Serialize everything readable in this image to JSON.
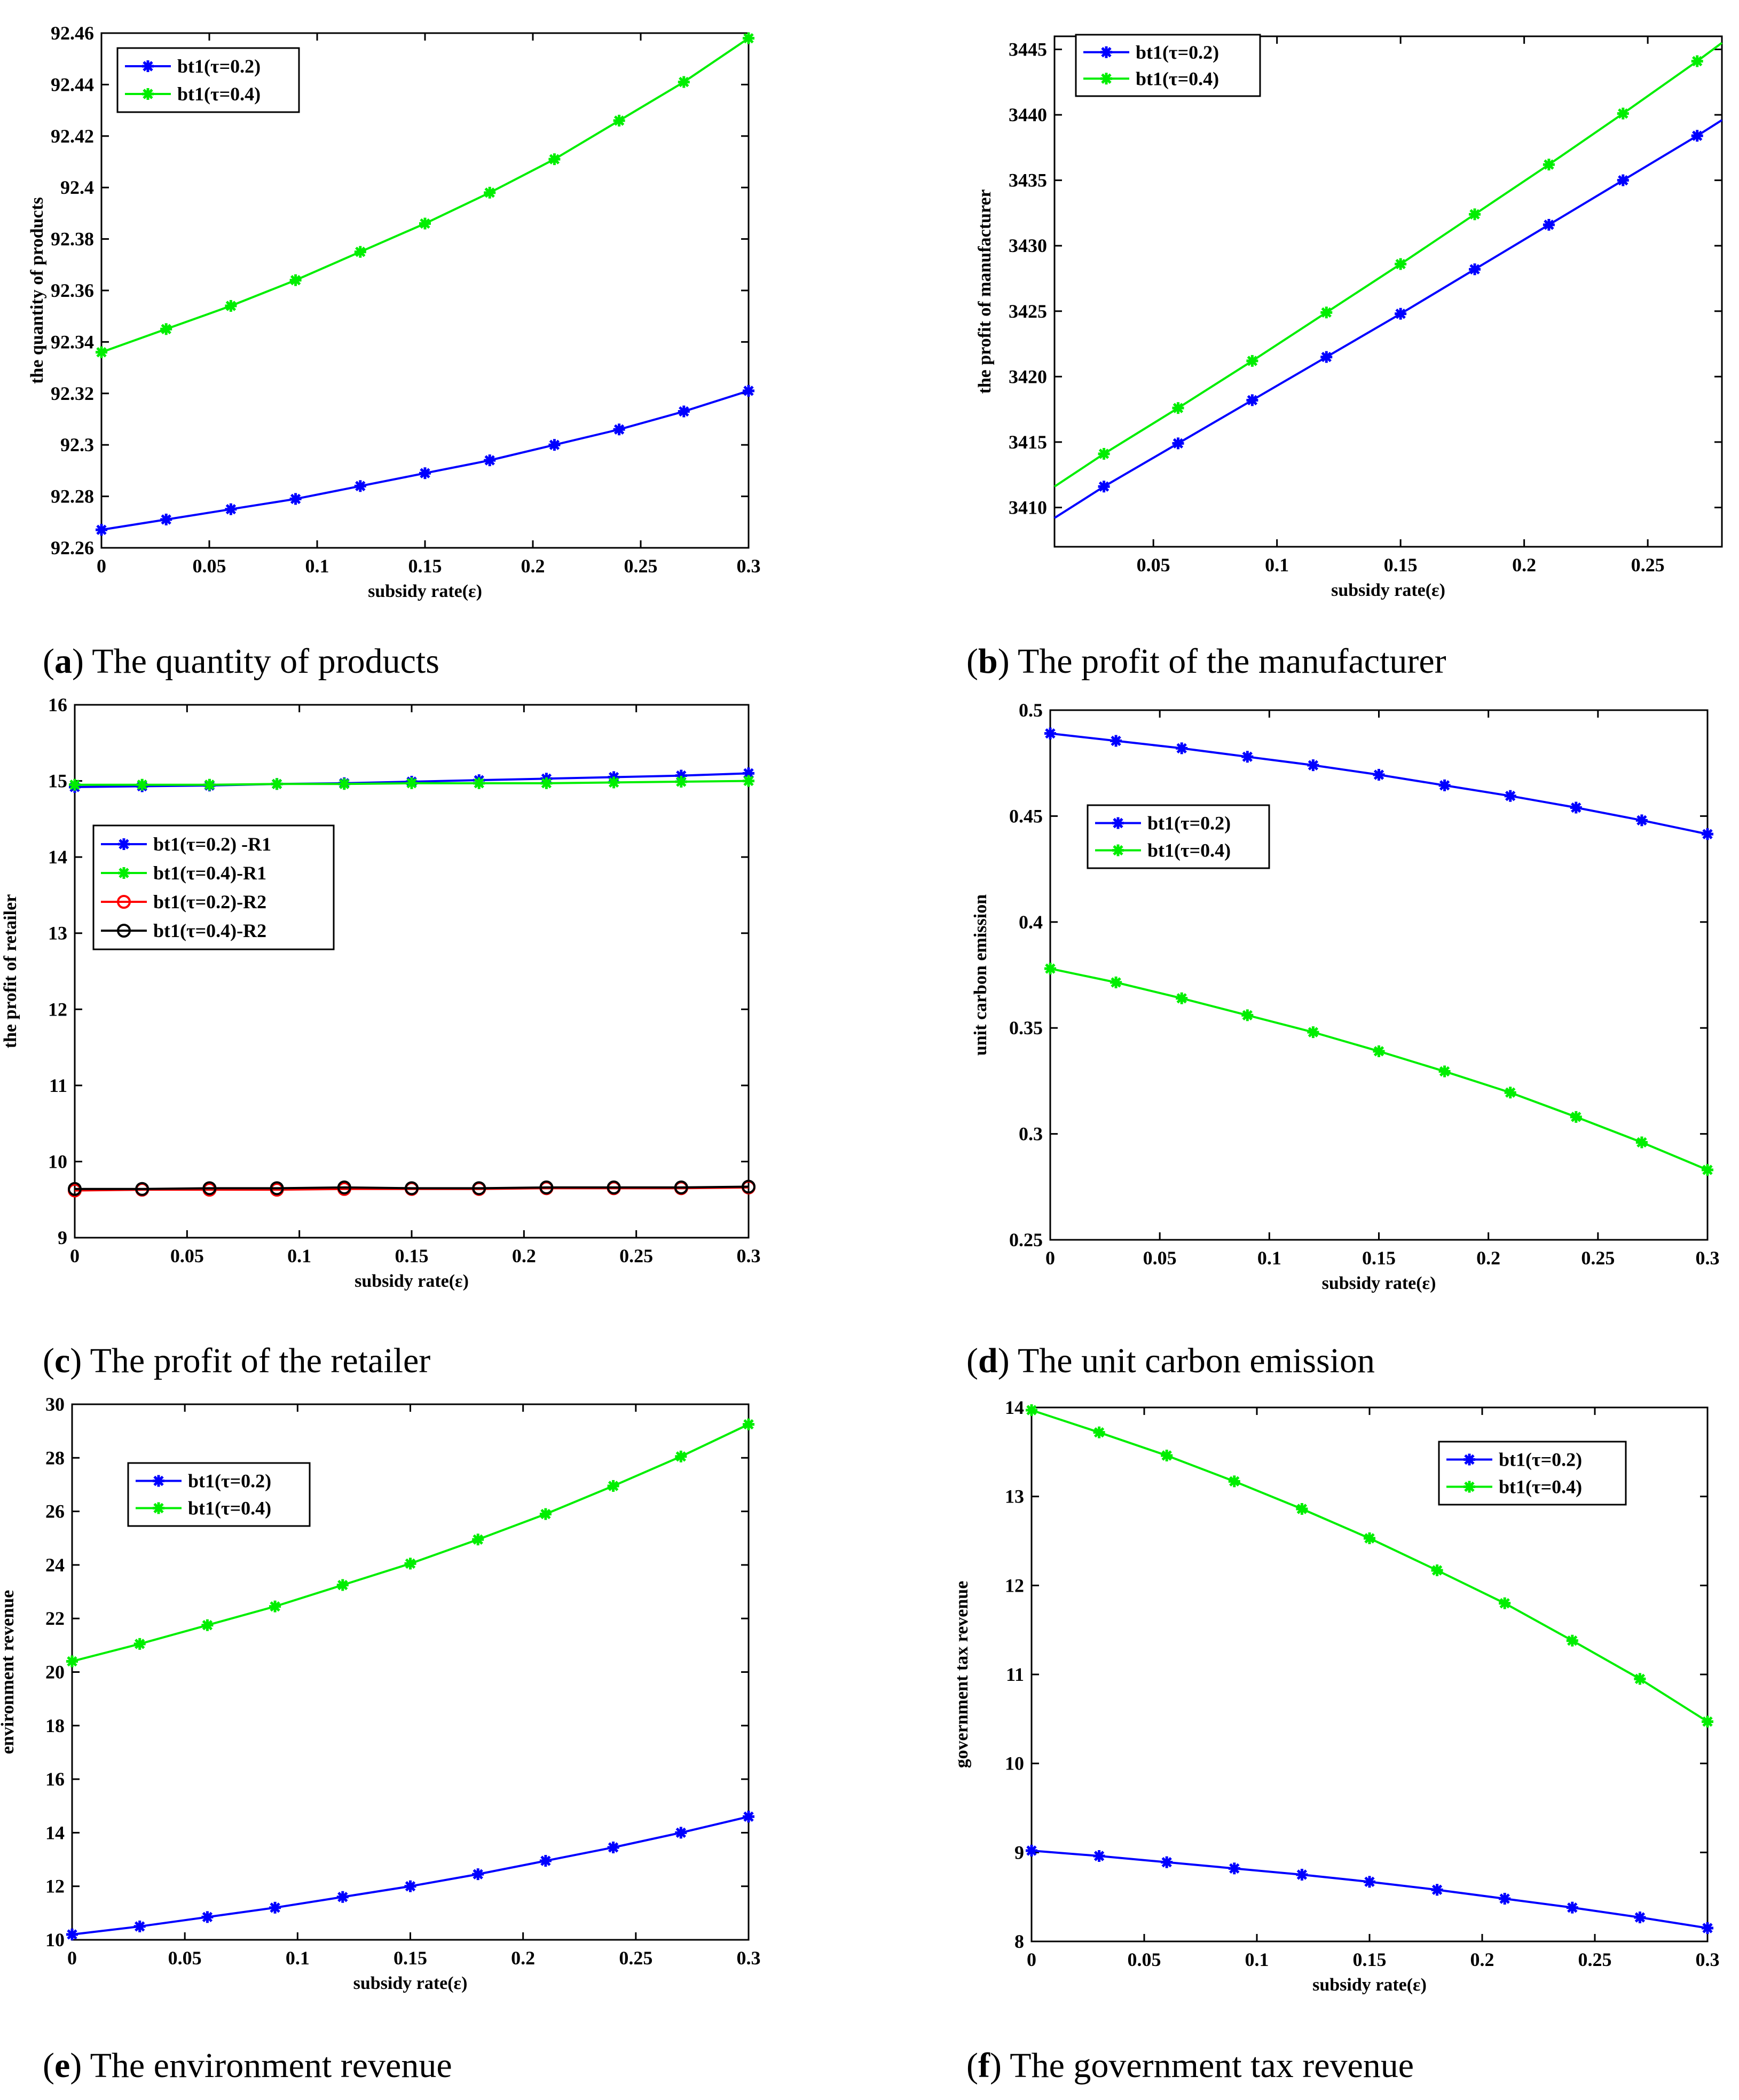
{
  "figure": {
    "panels": [
      {
        "letter": "a",
        "caption": "The quantity of products"
      },
      {
        "letter": "b",
        "caption": "The profit of the manufacturer"
      },
      {
        "letter": "c",
        "caption": "The profit of the retailer"
      },
      {
        "letter": "d",
        "caption": "The unit carbon emission"
      },
      {
        "letter": "e",
        "caption": "The environment revenue"
      },
      {
        "letter": "f",
        "caption": "The government tax revenue"
      }
    ]
  },
  "colors": {
    "blue": "#0000ff",
    "green": "#00ee00",
    "red": "#ff0000",
    "black": "#000000"
  },
  "chart_data": [
    {
      "id": "a",
      "type": "line",
      "title": "",
      "xlabel": "subsidy rate(ε)",
      "ylabel": "the quantity of products",
      "xlim": [
        0,
        0.3
      ],
      "ylim": [
        92.26,
        92.46
      ],
      "xticks": [
        0,
        0.05,
        0.1,
        0.15,
        0.2,
        0.25,
        0.3
      ],
      "xtick_labels": [
        "0",
        "0.05",
        "0.1",
        "0.15",
        "0.2",
        "0.25",
        "0.3"
      ],
      "yticks": [
        92.26,
        92.28,
        92.3,
        92.32,
        92.34,
        92.36,
        92.38,
        92.4,
        92.42,
        92.44,
        92.46
      ],
      "ytick_labels": [
        "92.26",
        "92.28",
        "92.3",
        "92.32",
        "92.34",
        "92.36",
        "92.38",
        "92.4",
        "92.42",
        "92.44",
        "92.46"
      ],
      "legend_position": "top-left",
      "x": [
        0,
        0.03,
        0.06,
        0.09,
        0.12,
        0.15,
        0.18,
        0.21,
        0.24,
        0.27,
        0.3
      ],
      "series": [
        {
          "name": "bt1(τ=0.2)",
          "color": "#0000ff",
          "marker": "asterisk",
          "values": [
            92.267,
            92.271,
            92.275,
            92.279,
            92.284,
            92.289,
            92.294,
            92.3,
            92.306,
            92.313,
            92.321
          ]
        },
        {
          "name": "bt1(τ=0.4)",
          "color": "#00ee00",
          "marker": "asterisk",
          "values": [
            92.336,
            92.345,
            92.354,
            92.364,
            92.375,
            92.386,
            92.398,
            92.411,
            92.426,
            92.441,
            92.458
          ]
        }
      ]
    },
    {
      "id": "b",
      "type": "line",
      "title": "",
      "xlabel": "subsidy rate(ε)",
      "ylabel": "the profit of manufacturer",
      "xlim": [
        0.01,
        0.28
      ],
      "ylim": [
        3407,
        3446
      ],
      "xticks": [
        0.05,
        0.1,
        0.15,
        0.2,
        0.25
      ],
      "xtick_labels": [
        "0.05",
        "0.1",
        "0.15",
        "0.2",
        "0.25"
      ],
      "yticks": [
        3410,
        3415,
        3420,
        3425,
        3430,
        3435,
        3440,
        3445
      ],
      "ytick_labels": [
        "3410",
        "3415",
        "3420",
        "3425",
        "3430",
        "3435",
        "3440",
        "3445"
      ],
      "legend_position": "top-left",
      "x": [
        0.01,
        0.03,
        0.06,
        0.09,
        0.12,
        0.15,
        0.18,
        0.21,
        0.24,
        0.27,
        0.28
      ],
      "marker_mask": [
        false,
        true,
        true,
        true,
        true,
        true,
        true,
        true,
        true,
        true,
        false
      ],
      "series": [
        {
          "name": "bt1(τ=0.2)",
          "color": "#0000ff",
          "marker": "asterisk",
          "values": [
            3409.2,
            3411.6,
            3414.9,
            3418.2,
            3421.5,
            3424.8,
            3428.2,
            3431.6,
            3435.0,
            3438.4,
            3439.6
          ]
        },
        {
          "name": "bt1(τ=0.4)",
          "color": "#00ee00",
          "marker": "asterisk",
          "values": [
            3411.6,
            3414.1,
            3417.6,
            3421.2,
            3424.9,
            3428.6,
            3432.4,
            3436.2,
            3440.1,
            3444.1,
            3445.5
          ]
        }
      ]
    },
    {
      "id": "c",
      "type": "line",
      "title": "",
      "xlabel": "subsidy rate(ε)",
      "ylabel": "the profit of retailer",
      "xlim": [
        0,
        0.3
      ],
      "ylim": [
        9,
        16
      ],
      "xticks": [
        0,
        0.05,
        0.1,
        0.15,
        0.2,
        0.25,
        0.3
      ],
      "xtick_labels": [
        "0",
        "0.05",
        "0.1",
        "0.15",
        "0.2",
        "0.25",
        "0.3"
      ],
      "yticks": [
        9,
        10,
        11,
        12,
        13,
        14,
        15,
        16
      ],
      "ytick_labels": [
        "9",
        "10",
        "11",
        "12",
        "13",
        "14",
        "15",
        "16"
      ],
      "legend_position": "upper-left",
      "x": [
        0,
        0.03,
        0.06,
        0.09,
        0.12,
        0.15,
        0.18,
        0.21,
        0.24,
        0.27,
        0.3
      ],
      "series": [
        {
          "name": "bt1(τ=0.2) -R1",
          "color": "#0000ff",
          "marker": "asterisk",
          "values": [
            14.92,
            14.93,
            14.94,
            14.96,
            14.97,
            14.99,
            15.01,
            15.03,
            15.05,
            15.07,
            15.1
          ]
        },
        {
          "name": "bt1(τ=0.4)-R1",
          "color": "#00ee00",
          "marker": "asterisk",
          "values": [
            14.95,
            14.95,
            14.95,
            14.96,
            14.96,
            14.97,
            14.97,
            14.97,
            14.98,
            14.99,
            15.0
          ]
        },
        {
          "name": "bt1(τ=0.2)-R2",
          "color": "#ff0000",
          "marker": "circle",
          "values": [
            9.62,
            9.63,
            9.63,
            9.63,
            9.64,
            9.64,
            9.64,
            9.65,
            9.65,
            9.65,
            9.66
          ]
        },
        {
          "name": "bt1(τ=0.4)-R2",
          "color": "#000000",
          "marker": "circle",
          "values": [
            9.64,
            9.64,
            9.65,
            9.65,
            9.66,
            9.65,
            9.65,
            9.66,
            9.66,
            9.66,
            9.67
          ]
        }
      ]
    },
    {
      "id": "d",
      "type": "line",
      "title": "",
      "xlabel": "subsidy rate(ε)",
      "ylabel": "unit carbon emission",
      "xlim": [
        0,
        0.3
      ],
      "ylim": [
        0.25,
        0.5
      ],
      "xticks": [
        0,
        0.05,
        0.1,
        0.15,
        0.2,
        0.25,
        0.3
      ],
      "xtick_labels": [
        "0",
        "0.05",
        "0.1",
        "0.15",
        "0.2",
        "0.25",
        "0.3"
      ],
      "yticks": [
        0.25,
        0.3,
        0.35,
        0.4,
        0.45,
        0.5
      ],
      "ytick_labels": [
        "0.25",
        "0.3",
        "0.35",
        "0.4",
        "0.45",
        "0.5"
      ],
      "legend_position": "upper-left",
      "x": [
        0,
        0.03,
        0.06,
        0.09,
        0.12,
        0.15,
        0.18,
        0.21,
        0.24,
        0.27,
        0.3
      ],
      "series": [
        {
          "name": "bt1(τ=0.2)",
          "color": "#0000ff",
          "marker": "asterisk",
          "values": [
            0.489,
            0.4855,
            0.482,
            0.478,
            0.474,
            0.4695,
            0.4645,
            0.4595,
            0.454,
            0.448,
            0.4415
          ]
        },
        {
          "name": "bt1(τ=0.4)",
          "color": "#00ee00",
          "marker": "asterisk",
          "values": [
            0.378,
            0.3715,
            0.364,
            0.356,
            0.348,
            0.339,
            0.3295,
            0.3195,
            0.308,
            0.296,
            0.283
          ]
        }
      ]
    },
    {
      "id": "e",
      "type": "line",
      "title": "",
      "xlabel": "subsidy rate(ε)",
      "ylabel": "environment revenue",
      "xlim": [
        0,
        0.3
      ],
      "ylim": [
        10,
        30
      ],
      "xticks": [
        0,
        0.05,
        0.1,
        0.15,
        0.2,
        0.25,
        0.3
      ],
      "xtick_labels": [
        "0",
        "0.05",
        "0.1",
        "0.15",
        "0.2",
        "0.25",
        "0.3"
      ],
      "yticks": [
        10,
        12,
        14,
        16,
        18,
        20,
        22,
        24,
        26,
        28,
        30
      ],
      "ytick_labels": [
        "10",
        "12",
        "14",
        "16",
        "18",
        "20",
        "22",
        "24",
        "26",
        "28",
        "30"
      ],
      "legend_position": "upper-left",
      "x": [
        0,
        0.03,
        0.06,
        0.09,
        0.12,
        0.15,
        0.18,
        0.21,
        0.24,
        0.27,
        0.3
      ],
      "series": [
        {
          "name": "bt1(τ=0.2)",
          "color": "#0000ff",
          "marker": "asterisk",
          "values": [
            10.2,
            10.5,
            10.85,
            11.2,
            11.6,
            12.0,
            12.45,
            12.95,
            13.45,
            14.0,
            14.6
          ]
        },
        {
          "name": "bt1(τ=0.4)",
          "color": "#00ee00",
          "marker": "asterisk",
          "values": [
            20.4,
            21.05,
            21.75,
            22.45,
            23.25,
            24.05,
            24.95,
            25.9,
            26.95,
            28.05,
            29.25
          ]
        }
      ]
    },
    {
      "id": "f",
      "type": "line",
      "title": "",
      "xlabel": "subsidy rate(ε)",
      "ylabel": "government tax revenue",
      "xlim": [
        0,
        0.3
      ],
      "ylim": [
        8,
        14
      ],
      "xticks": [
        0,
        0.05,
        0.1,
        0.15,
        0.2,
        0.25,
        0.3
      ],
      "xtick_labels": [
        "0",
        "0.05",
        "0.1",
        "0.15",
        "0.2",
        "0.25",
        "0.3"
      ],
      "yticks": [
        8,
        9,
        10,
        11,
        12,
        13,
        14
      ],
      "ytick_labels": [
        "8",
        "9",
        "10",
        "11",
        "12",
        "13",
        "14"
      ],
      "legend_position": "top-right",
      "x": [
        0,
        0.03,
        0.06,
        0.09,
        0.12,
        0.15,
        0.18,
        0.21,
        0.24,
        0.27,
        0.3
      ],
      "series": [
        {
          "name": "bt1(τ=0.2)",
          "color": "#0000ff",
          "marker": "asterisk",
          "values": [
            9.02,
            8.96,
            8.89,
            8.82,
            8.75,
            8.67,
            8.58,
            8.48,
            8.38,
            8.27,
            8.15
          ]
        },
        {
          "name": "bt1(τ=0.4)",
          "color": "#00ee00",
          "marker": "asterisk",
          "values": [
            13.97,
            13.72,
            13.46,
            13.17,
            12.86,
            12.53,
            12.17,
            11.8,
            11.38,
            10.95,
            10.47
          ]
        }
      ]
    }
  ]
}
